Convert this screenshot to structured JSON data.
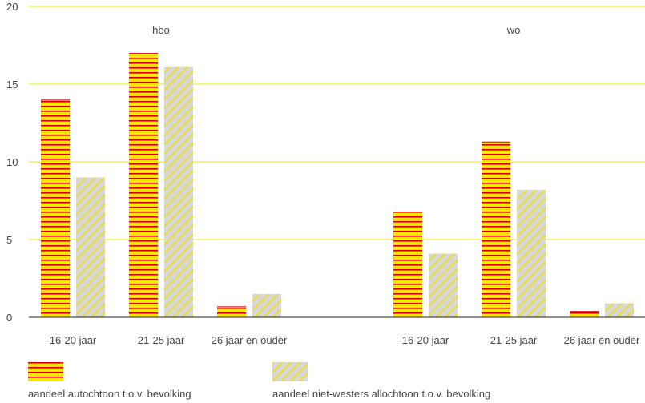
{
  "chart_data": {
    "type": "bar",
    "groups": [
      {
        "label": "hbo",
        "categories": [
          "16-20 jaar",
          "21-25 jaar",
          "26 jaar en ouder"
        ],
        "series_values": [
          [
            14.0,
            17.0,
            0.7
          ],
          [
            9.0,
            16.1,
            1.5
          ]
        ]
      },
      {
        "label": "wo",
        "categories": [
          "16-20 jaar",
          "21-25 jaar",
          "26 jaar en ouder"
        ],
        "series_values": [
          [
            6.8,
            11.3,
            0.4
          ],
          [
            4.1,
            8.2,
            0.9
          ]
        ]
      }
    ],
    "series": [
      {
        "name": "aandeel autochtoon t.o.v. bevolking",
        "fill": "#ffe600",
        "stripe": "#d4001a"
      },
      {
        "name": "aandeel niet-westers allochtoon t.o.v. bevolking",
        "fill": "#d8d8d8",
        "stripe": "#f2e000"
      }
    ],
    "ylim": [
      0,
      20
    ],
    "yticks": [
      0,
      5,
      10,
      15,
      20
    ],
    "grid": true,
    "gridline_color": "#f5e600",
    "axis_color": "#222222",
    "legend_position": "bottom-left"
  }
}
